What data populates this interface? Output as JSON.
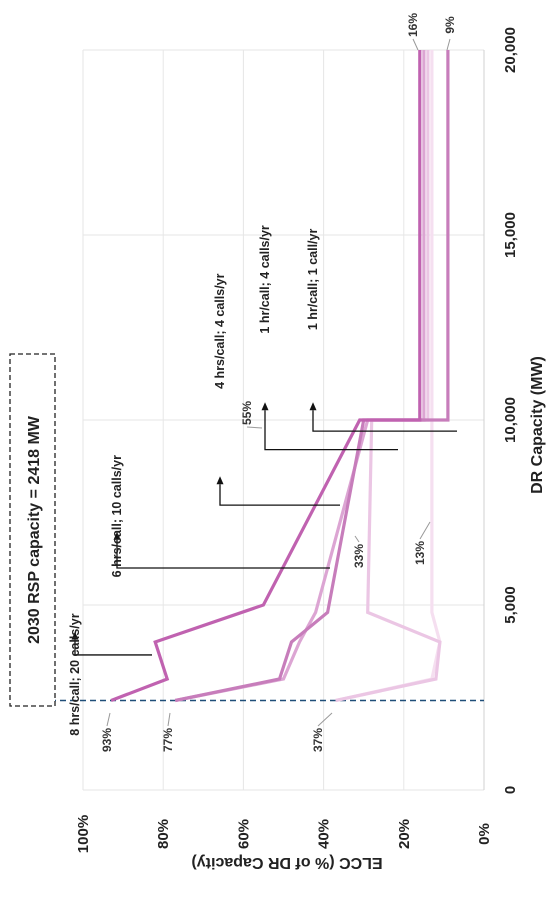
{
  "chart_data": {
    "type": "line",
    "orientation": "rotated-90-ccw",
    "xlabel": "DR Capacity (MW)",
    "ylabel": "ELCC (% of DR Capacity)",
    "xlim": [
      0,
      20000
    ],
    "ylim": [
      0,
      100
    ],
    "x_ticks": [
      "0",
      "5,000",
      "10,000",
      "15,000",
      "20,000"
    ],
    "y_ticks": [
      "0%",
      "20%",
      "40%",
      "60%",
      "80%",
      "100%"
    ],
    "grid": true,
    "series": [
      {
        "name": "8 hrs/call; 20 calls/yr",
        "color": "#c062b0",
        "x": [
          2418,
          2418,
          3000,
          3000,
          4000,
          4000,
          5000,
          5000,
          10000,
          10000,
          20000
        ],
        "y": [
          93,
          93,
          79,
          79,
          82,
          82,
          55,
          55,
          31,
          16,
          16
        ]
      },
      {
        "name": "6 hrs/call; 10 calls/yr",
        "color": "#c77dbb",
        "x": [
          2418,
          2418,
          3000,
          3000,
          4000,
          4000,
          4800,
          4800,
          10000,
          10000,
          20000
        ],
        "y": [
          77,
          77,
          51,
          51,
          48,
          48,
          39,
          39,
          30,
          9,
          9
        ]
      },
      {
        "name": "4 hrs/call; 4 calls/yr",
        "color": "#dca5d3",
        "x": [
          2418,
          2418,
          3000,
          3000,
          4000,
          4000,
          4800,
          4800,
          10000,
          10000,
          20000
        ],
        "y": [
          77,
          77,
          50,
          50,
          46,
          46,
          42,
          42,
          29,
          15,
          15
        ]
      },
      {
        "name": "1 hr/call; 4 calls/yr",
        "color": "#ebc6e4",
        "x": [
          2418,
          2418,
          3000,
          3000,
          4000,
          4000,
          4800,
          4800,
          10000,
          10000,
          20000
        ],
        "y": [
          37,
          37,
          12,
          12,
          11,
          11,
          29,
          29,
          28,
          14,
          14
        ]
      },
      {
        "name": "1 hr/call; 1 call/yr",
        "color": "#f5dff0",
        "x": [
          2418,
          2418,
          3000,
          3000,
          4000,
          4000,
          4800,
          4800,
          10000,
          10000,
          20000
        ],
        "y": [
          37,
          37,
          13,
          13,
          11,
          11,
          13,
          13,
          13,
          13,
          13
        ]
      }
    ],
    "data_labels": [
      "93%",
      "77%",
      "37%",
      "55%",
      "33%",
      "13%",
      "16%",
      "9%"
    ],
    "annotations": [
      "8 hrs/call; 20 calls/yr",
      "6 hrs/call; 10 calls/yr",
      "4 hrs/call; 4 calls/yr",
      "1 hr/call; 4 calls/yr",
      "1 hr/call; 1 call/yr"
    ],
    "reference_line": {
      "x": 2418,
      "label": "2030 RSP capacity = 2418 MW",
      "color": "#1f4e79",
      "style": "dashed"
    }
  }
}
